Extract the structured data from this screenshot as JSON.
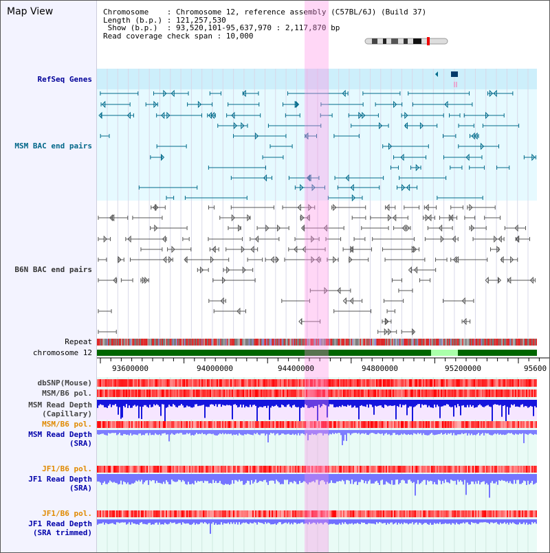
{
  "header": {
    "title": "Map View",
    "info_lines": [
      "Chromosome    : Chromosome 12, reference assembly (C57BL/6J) (Build 37)",
      "Length (b.p.) : 121,257,530",
      " Show (b.p.)  : 93,520,101-95,637,970 : 2,117,870 bp",
      "Read coverage check span : 10,000"
    ]
  },
  "tracks": {
    "refseq": {
      "label": "RefSeq Genes",
      "color": "#000099"
    },
    "msm_bac": {
      "label": "MSM BAC end pairs",
      "color": "#006688"
    },
    "b6n_bac": {
      "label": "B6N BAC end pairs",
      "color": "#333333"
    },
    "repeat": {
      "label": "Repeat"
    },
    "chromosome": {
      "label": "chromosome 12"
    },
    "dbsnp": {
      "label": "dbSNP(Mouse)"
    },
    "msm_b6_pol_1": {
      "label": "MSM/B6 pol."
    },
    "msm_depth_cap": {
      "label_1": "MSM Read Depth",
      "label_2": "(Capillary)"
    },
    "msm_b6_pol_2": {
      "label": "MSM/B6 pol."
    },
    "msm_depth_sra": {
      "label_1": "MSM Read Depth",
      "label_2": "(SRA)"
    },
    "jf1_b6_pol_1": {
      "label": "JF1/B6 pol."
    },
    "jf1_depth_sra": {
      "label_1": "JF1 Read Depth",
      "label_2": "(SRA)"
    },
    "jf1_b6_pol_2": {
      "label": "JF1/B6 pol."
    },
    "jf1_depth_trim": {
      "label_1": "JF1 Read Depth",
      "label_2": "(SRA trimmed)"
    }
  },
  "axis": {
    "ticks": [
      "93600000",
      "94000000",
      "94400000",
      "94800000",
      "95200000",
      "95600"
    ]
  },
  "colors": {
    "gene": "#006a8a",
    "bac": "#555555",
    "chrom": "#006600",
    "highlight": "#ffb0ee",
    "depth_dark": "#0000ee",
    "depth_light": "#7777ff"
  }
}
